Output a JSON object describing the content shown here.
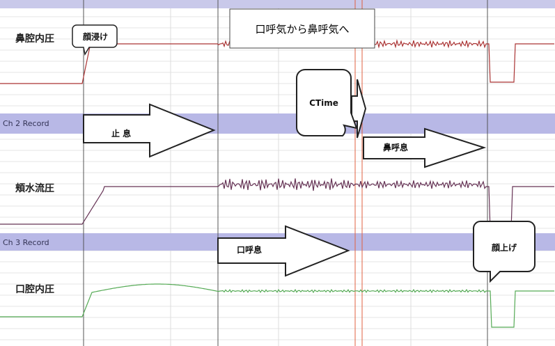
{
  "channels": [
    {
      "label": "鼻腔内圧"
    },
    {
      "header": "Ch 2 Record",
      "label": "頬水流圧"
    },
    {
      "header": "Ch 3 Record",
      "label": "口腔内圧"
    }
  ],
  "callouts": {
    "face_in": "顔浸け",
    "transition": "口呼気から鼻呼気へ",
    "ctime": "CTime",
    "face_up": "顔上げ"
  },
  "arrows": {
    "hold": "止 息",
    "nasal": "鼻呼息",
    "oral": "口呼息"
  }
}
